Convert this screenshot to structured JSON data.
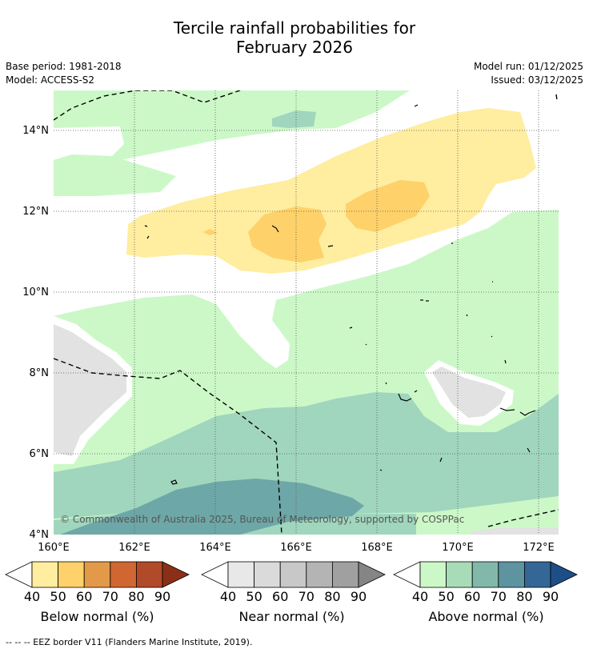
{
  "title_line1": "Tercile rainfall probabilities for",
  "title_line2": "February 2026",
  "base_period": "Base period: 1981-2018",
  "model": "Model: ACCESS-S2",
  "model_run": "Model run: 01/12/2025",
  "issued": "Issued: 03/12/2025",
  "copyright": "© Commonwealth of Australia 2025, Bureau of Meteorology, supported by COSPPac",
  "lon_labels": [
    "160°E",
    "162°E",
    "164°E",
    "166°E",
    "168°E",
    "170°E",
    "172°E"
  ],
  "lat_labels": [
    "4°N",
    "6°N",
    "8°N",
    "10°N",
    "12°N",
    "14°N"
  ],
  "colorbars": [
    {
      "name": "below",
      "title": "Below normal (%)",
      "ticks": [
        "40",
        "50",
        "60",
        "70",
        "80",
        "90"
      ],
      "colors": [
        "#ffeda0",
        "#fed16a",
        "#e39a48",
        "#d06632",
        "#b04a28"
      ],
      "over": "#8b2f18"
    },
    {
      "name": "near",
      "title": "Near normal (%)",
      "ticks": [
        "40",
        "50",
        "60",
        "70",
        "80",
        "90"
      ],
      "colors": [
        "#e8e8e8",
        "#dadada",
        "#c8c8c8",
        "#b4b4b4",
        "#a0a0a0"
      ],
      "over": "#858585"
    },
    {
      "name": "above",
      "title": "Above normal (%)",
      "ticks": [
        "40",
        "50",
        "60",
        "70",
        "80",
        "90"
      ],
      "colors": [
        "#ccf8c8",
        "#a8dcb8",
        "#82b8aa",
        "#5d949f",
        "#346696"
      ],
      "over": "#1d4e86"
    }
  ],
  "footer": "--  --  -- EEZ border V11 (Flanders Marine Institute, 2019)."
}
